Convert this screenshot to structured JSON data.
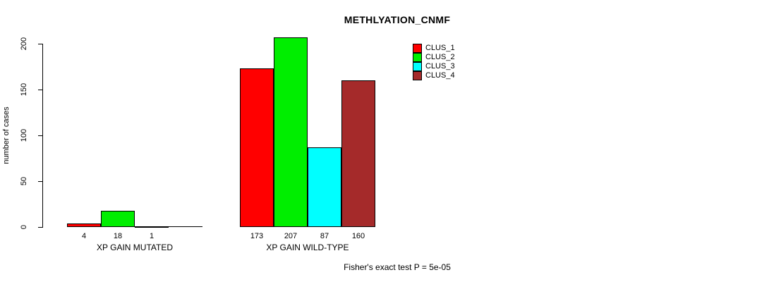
{
  "chart_data": {
    "type": "bar",
    "title": "METHLYATION_CNMF",
    "ylabel": "number of cases",
    "xlabel": "",
    "groups": [
      "XP GAIN MUTATED",
      "XP GAIN WILD-TYPE"
    ],
    "series": [
      {
        "name": "CLUS_1",
        "color": "#ff0000",
        "values": [
          4,
          173
        ]
      },
      {
        "name": "CLUS_2",
        "color": "#00ee00",
        "values": [
          18,
          207
        ]
      },
      {
        "name": "CLUS_3",
        "color": "#00ffff",
        "values": [
          1,
          87
        ]
      },
      {
        "name": "CLUS_4",
        "color": "#a52a2a",
        "values": [
          0,
          160
        ]
      }
    ],
    "yticks": [
      0,
      50,
      100,
      150,
      200
    ],
    "ylim": [
      0,
      210
    ],
    "grid": false,
    "legend_position": "top-right",
    "bar_labels_shown": true,
    "annotation": "Fisher's exact test P = 5e-05"
  }
}
